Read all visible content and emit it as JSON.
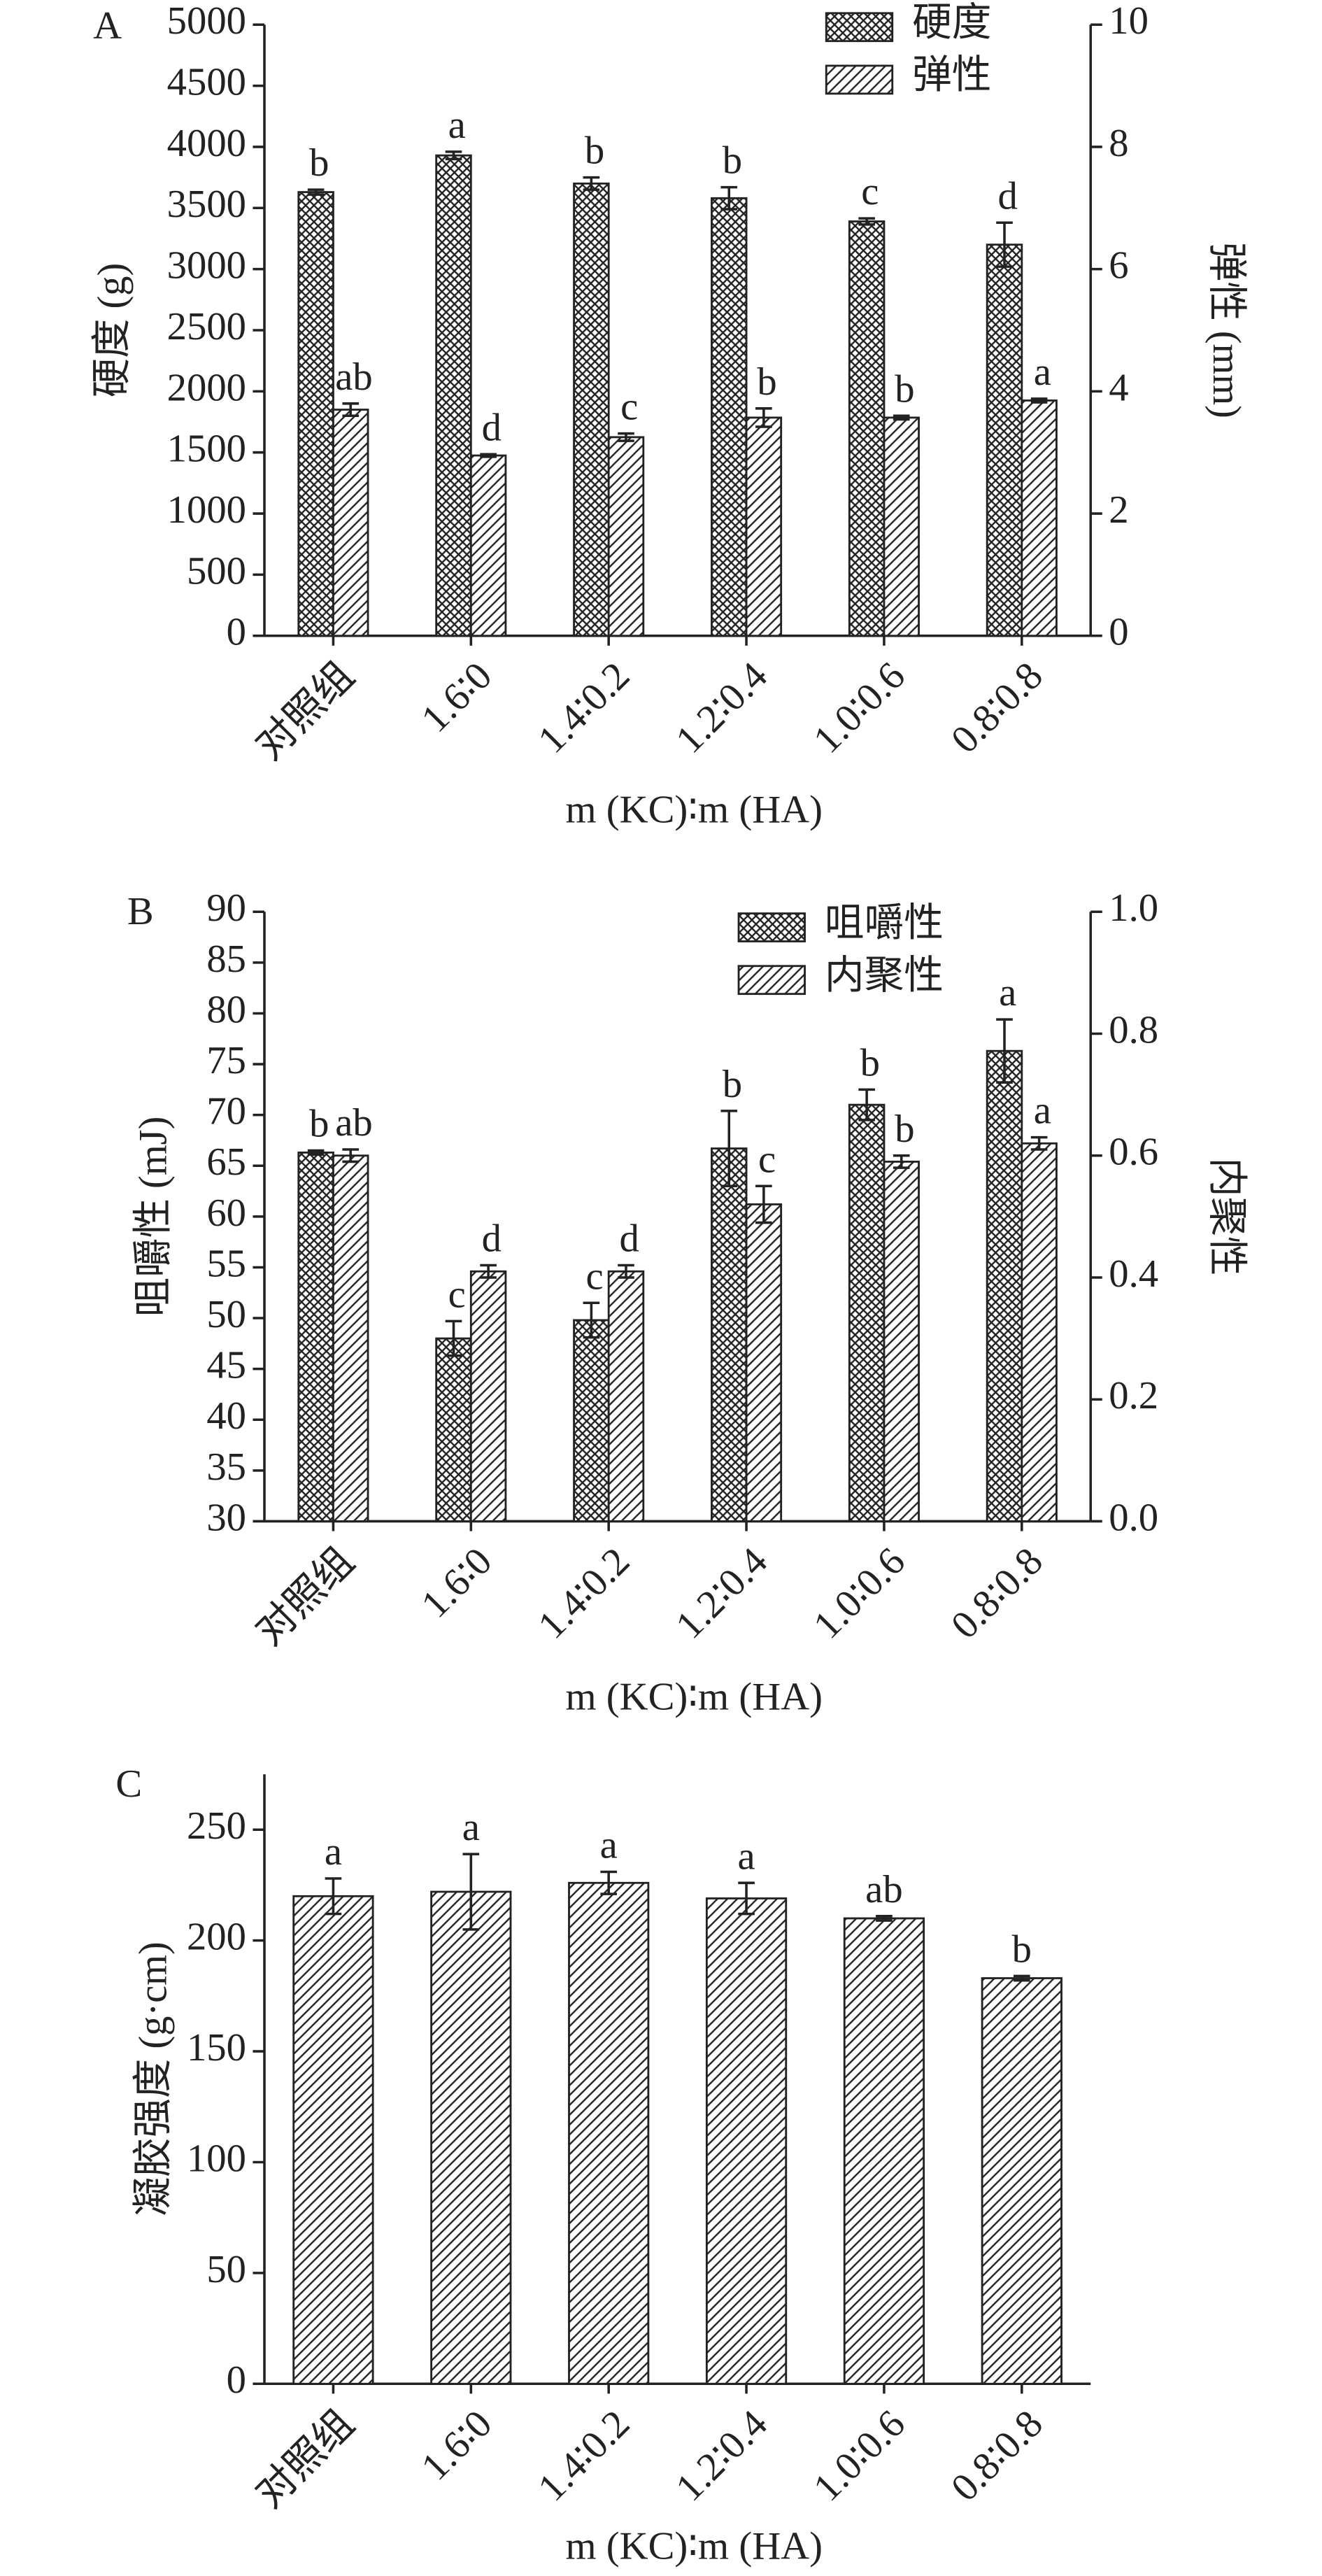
{
  "chart_data": [
    {
      "type": "bar",
      "panel": "A",
      "y_label": "硬度 (g)",
      "y2_label": "弹性 (mm)",
      "x_label": "m (KC)∶m (HA)",
      "categories": [
        "对照组",
        "1.6∶0",
        "1.4∶0.2",
        "1.2∶0.4",
        "1.0∶0.6",
        "0.8∶0.8"
      ],
      "ylim": [
        0,
        5000
      ],
      "yticks": [
        0,
        500,
        1000,
        1500,
        2000,
        2500,
        3000,
        3500,
        4000,
        4500,
        5000
      ],
      "y2lim": [
        0,
        10
      ],
      "y2ticks": [
        0,
        2,
        4,
        6,
        8,
        10
      ],
      "legend": "upper right",
      "series": [
        {
          "name": "硬度",
          "pattern": "crosshatch",
          "color": "#222222",
          "values": [
            3630,
            3930,
            3700,
            3580,
            3390,
            3200
          ],
          "errors": [
            20,
            30,
            50,
            90,
            25,
            180
          ],
          "letters": [
            "b",
            "a",
            "b",
            "b",
            "c",
            "d"
          ]
        },
        {
          "name": "弹性",
          "pattern": "diagonal",
          "color": "#222222",
          "axis": "y2",
          "values": [
            3.7,
            2.95,
            3.25,
            3.57,
            3.57,
            3.85
          ],
          "errors": [
            0.1,
            0.02,
            0.06,
            0.15,
            0.03,
            0.03
          ],
          "letters": [
            "ab",
            "d",
            "c",
            "b",
            "b",
            "a"
          ]
        }
      ]
    },
    {
      "type": "bar",
      "panel": "B",
      "y_label": "咀嚼性 (mJ)",
      "y2_label": "内聚性",
      "x_label": "m (KC)∶m (HA)",
      "categories": [
        "对照组",
        "1.6∶0",
        "1.4∶0.2",
        "1.2∶0.4",
        "1.0∶0.6",
        "0.8∶0.8"
      ],
      "ylim": [
        30,
        90
      ],
      "yticks": [
        30,
        35,
        40,
        45,
        50,
        55,
        60,
        65,
        70,
        75,
        80,
        85,
        90
      ],
      "y2lim": [
        0,
        1
      ],
      "y2ticks": [
        {
          "value": 0,
          "label": "0.0"
        },
        0.2,
        0.4,
        0.6,
        0.8,
        {
          "value": 1,
          "label": "1.0"
        }
      ],
      "legend": "upper right",
      "series": [
        {
          "name": "咀嚼性",
          "pattern": "crosshatch",
          "color": "#222222",
          "values": [
            66.3,
            48,
            49.8,
            66.7,
            71,
            76.3
          ],
          "errors": [
            0.2,
            1.7,
            1.7,
            3.7,
            1.5,
            3.1
          ],
          "letters": [
            "b",
            "c",
            "c",
            "b",
            "b",
            "a"
          ]
        },
        {
          "name": "内聚性",
          "pattern": "diagonal",
          "color": "#222222",
          "axis": "y2",
          "values": [
            0.6,
            0.41,
            0.41,
            0.52,
            0.59,
            0.62
          ],
          "errors": [
            0.01,
            0.01,
            0.01,
            0.03,
            0.01,
            0.01
          ],
          "letters": [
            "ab",
            "d",
            "d",
            "c",
            "b",
            "a"
          ]
        }
      ]
    },
    {
      "type": "bar",
      "panel": "C",
      "y_label": "凝胶强度 (g·cm)",
      "x_label": "m (KC)∶m (HA)",
      "categories": [
        "对照组",
        "1.6∶0",
        "1.4∶0.2",
        "1.2∶0.4",
        "1.0∶0.6",
        "0.8∶0.8"
      ],
      "ylim": [
        0,
        275
      ],
      "yticks": [
        0,
        50,
        100,
        150,
        200,
        250
      ],
      "series": [
        {
          "pattern": "diagonal",
          "color": "#222222",
          "values": [
            220,
            222,
            226,
            219,
            210,
            183
          ],
          "errors": [
            8,
            17,
            5,
            7,
            1,
            1
          ],
          "letters": [
            "a",
            "a",
            "a",
            "a",
            "ab",
            "b"
          ]
        }
      ]
    }
  ]
}
